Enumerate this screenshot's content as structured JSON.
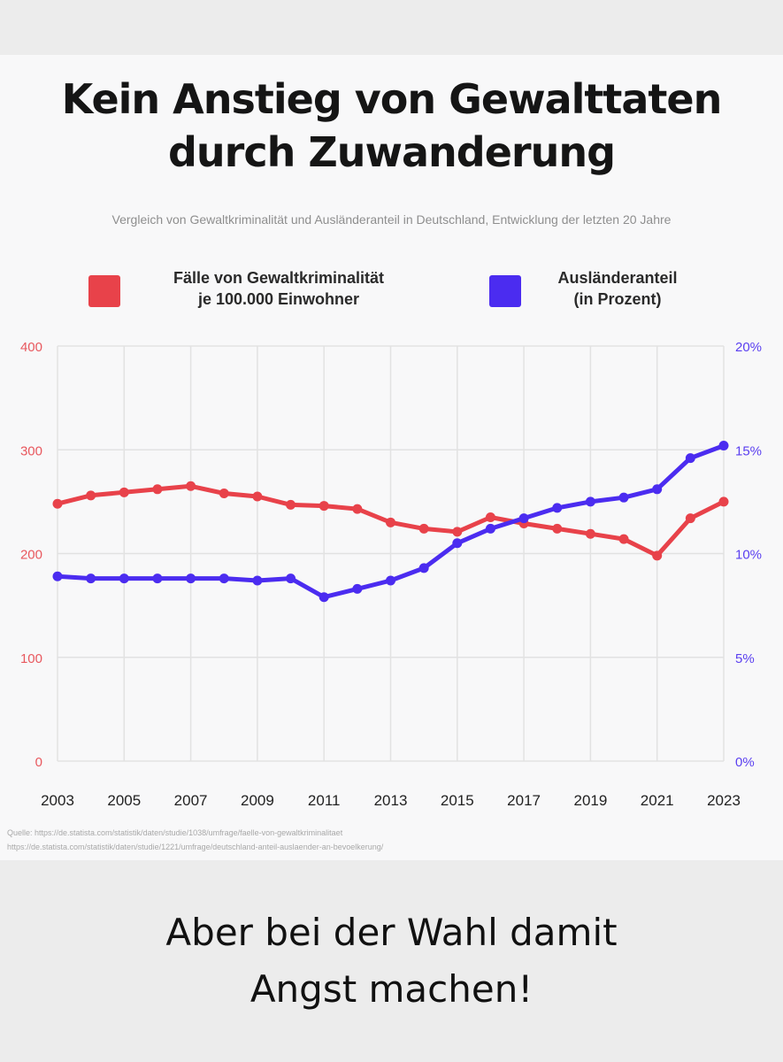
{
  "title_line1": "Kein Anstieg von Gewalttaten",
  "title_line2": "durch Zuwanderung",
  "subtitle": "Vergleich von Gewaltkriminalität und Ausländeranteil in Deutschland, Entwicklung der letzten 20 Jahre",
  "legend": {
    "crime_line1": "Fälle von Gewaltkriminalität",
    "crime_line2": "je 100.000 Einwohner",
    "foreign_line1": "Ausländeranteil",
    "foreign_line2": "(in Prozent)"
  },
  "colors": {
    "crime": "#e8424a",
    "foreign": "#4b2cf0",
    "grid": "#e2e2e2",
    "left_axis": "#e8585e",
    "right_axis": "#5a3ff0"
  },
  "chart_data": {
    "type": "line",
    "x": [
      2003,
      2004,
      2005,
      2006,
      2007,
      2008,
      2009,
      2010,
      2011,
      2012,
      2013,
      2014,
      2015,
      2016,
      2017,
      2018,
      2019,
      2020,
      2021,
      2022,
      2023
    ],
    "x_tick_labels": [
      "2003",
      "2005",
      "2007",
      "2009",
      "2011",
      "2013",
      "2015",
      "2017",
      "2019",
      "2021",
      "2023"
    ],
    "series": [
      {
        "name": "Fälle von Gewaltkriminalität je 100.000 Einwohner",
        "axis": "left",
        "values": [
          248,
          256,
          259,
          262,
          265,
          258,
          255,
          247,
          246,
          243,
          230,
          224,
          221,
          235,
          229,
          224,
          219,
          214,
          198,
          234,
          250
        ]
      },
      {
        "name": "Ausländeranteil (in Prozent)",
        "axis": "right",
        "values": [
          8.9,
          8.8,
          8.8,
          8.8,
          8.8,
          8.8,
          8.7,
          8.8,
          7.9,
          8.3,
          8.7,
          9.3,
          10.5,
          11.2,
          11.7,
          12.2,
          12.5,
          12.7,
          13.1,
          14.6,
          15.2
        ]
      }
    ],
    "y_left": {
      "lim": [
        0,
        400
      ],
      "ticks": [
        "0",
        "100",
        "200",
        "300",
        "400"
      ]
    },
    "y_right": {
      "lim": [
        0,
        20
      ],
      "ticks": [
        "0%",
        "5%",
        "10%",
        "15%",
        "20%"
      ]
    },
    "grid": true,
    "legend_position": "top"
  },
  "source_line1": "Quelle: https://de.statista.com/statistik/daten/studie/1038/umfrage/faelle-von-gewaltkriminalitaet",
  "source_line2": "https://de.statista.com/statistik/daten/studie/1221/umfrage/deutschland-anteil-auslaender-an-bevoelkerung/",
  "caption_line1": "Aber bei der Wahl damit",
  "caption_line2": "Angst machen!"
}
